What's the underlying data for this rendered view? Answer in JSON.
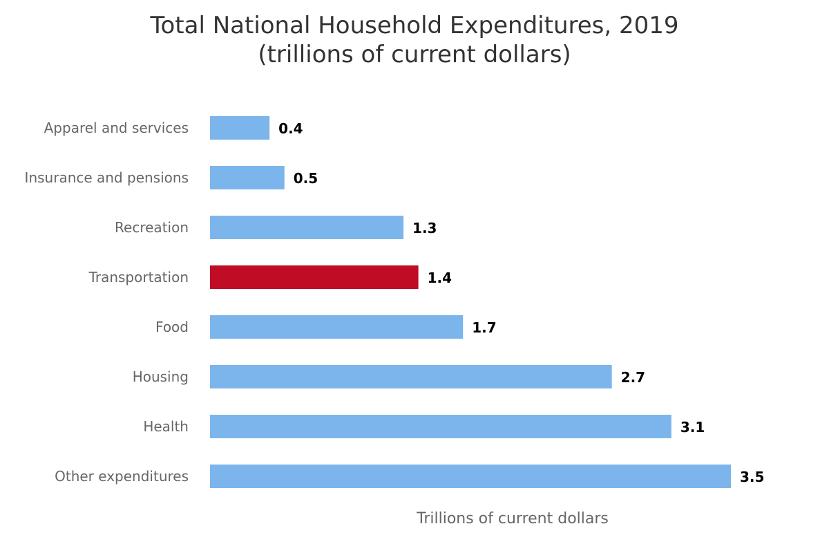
{
  "chart_data": {
    "type": "bar",
    "orientation": "horizontal",
    "title": "Total National Household Expenditures, 2019",
    "subtitle": "(trillions of current dollars)",
    "xlabel": "Trillions of current dollars",
    "ylabel": "",
    "categories": [
      "Apparel and services",
      "Insurance and pensions",
      "Recreation",
      "Transportation",
      "Food",
      "Housing",
      "Health",
      "Other expenditures"
    ],
    "values": [
      0.4,
      0.5,
      1.3,
      1.4,
      1.7,
      2.7,
      3.1,
      3.5
    ],
    "data_labels": [
      "0.4",
      "0.5",
      "1.3",
      "1.4",
      "1.7",
      "2.7",
      "3.1",
      "3.5"
    ],
    "xlim": [
      0,
      3.5
    ],
    "highlight_category": "Transportation",
    "grid": false,
    "legend": "none"
  },
  "colors": {
    "bar": "#7cb5ec",
    "highlight": "#c00c25"
  }
}
